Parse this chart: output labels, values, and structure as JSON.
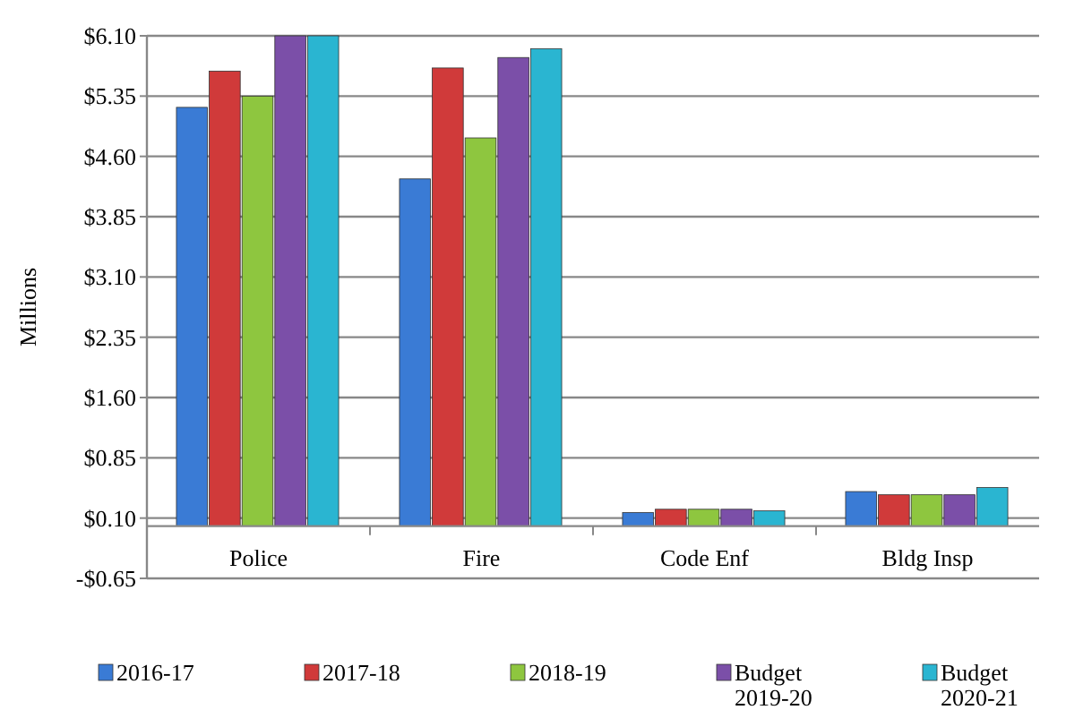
{
  "chart_data": {
    "type": "bar",
    "ylabel": "Millions",
    "categories": [
      "Police",
      "Fire",
      "Code Enf",
      "Bldg Insp"
    ],
    "series": [
      {
        "name": "2016-17",
        "color": "#3a7bd5",
        "values": [
          5.21,
          4.32,
          0.17,
          0.43
        ]
      },
      {
        "name": "2017-18",
        "color": "#d03a3a",
        "values": [
          5.66,
          5.7,
          0.21,
          0.39
        ]
      },
      {
        "name": "2018-19",
        "color": "#8ec63f",
        "values": [
          5.35,
          4.83,
          0.21,
          0.39
        ]
      },
      {
        "name": "Budget 2019-20",
        "color": "#7b4fa8",
        "values": [
          6.1,
          5.83,
          0.21,
          0.39
        ]
      },
      {
        "name": "Budget 2020-21",
        "color": "#2ab5d1",
        "values": [
          6.1,
          5.94,
          0.19,
          0.48
        ]
      }
    ],
    "ylim": [
      -0.65,
      6.1
    ],
    "yticks": [
      {
        "value": -0.65,
        "label": "-$0.65"
      },
      {
        "value": 0.1,
        "label": "$0.10"
      },
      {
        "value": 0.85,
        "label": "$0.85"
      },
      {
        "value": 1.6,
        "label": "$1.60"
      },
      {
        "value": 2.35,
        "label": "$2.35"
      },
      {
        "value": 3.1,
        "label": "$3.10"
      },
      {
        "value": 3.85,
        "label": "$3.85"
      },
      {
        "value": 4.6,
        "label": "$4.60"
      },
      {
        "value": 5.35,
        "label": "$5.35"
      },
      {
        "value": 6.1,
        "label": "$6.10"
      }
    ],
    "grid": "y",
    "legend": "bottom"
  }
}
